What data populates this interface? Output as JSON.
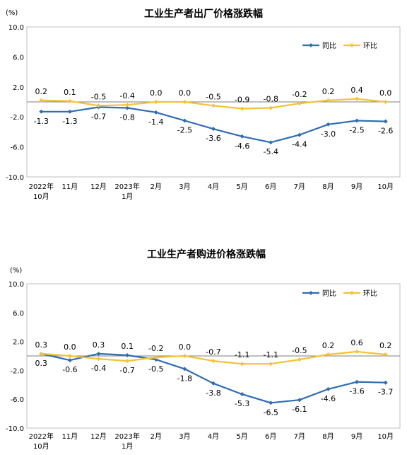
{
  "chart_data": [
    {
      "type": "line",
      "title": "工业生产者出厂价格涨跌幅",
      "unit": "(%)",
      "categories": [
        [
          "2022年",
          "10月"
        ],
        [
          "11月"
        ],
        [
          "12月"
        ],
        [
          "2023年",
          "1月"
        ],
        [
          "2月"
        ],
        [
          "3月"
        ],
        [
          "4月"
        ],
        [
          "5月"
        ],
        [
          "6月"
        ],
        [
          "7月"
        ],
        [
          "8月"
        ],
        [
          "9月"
        ],
        [
          "10月"
        ]
      ],
      "ylim": [
        -10.0,
        10.0
      ],
      "yticks": [
        "10.0",
        "6.0",
        "2.0",
        "-2.0",
        "-6.0",
        "-10.0"
      ],
      "ytick_values": [
        10,
        6,
        2,
        -2,
        -6,
        -10
      ],
      "legend_position": "top-right",
      "grid": false,
      "series": [
        {
          "name": "同比",
          "color": "#2E6DB4",
          "values": [
            -1.3,
            -1.3,
            -0.7,
            -0.8,
            -1.4,
            -2.5,
            -3.6,
            -4.6,
            -5.4,
            -4.4,
            -3.0,
            -2.5,
            -2.6
          ],
          "labels": [
            "-1.3",
            "-1.3",
            "-0.7",
            "-0.8",
            "-1.4",
            "-2.5",
            "-3.6",
            "-4.6",
            "-5.4",
            "-4.4",
            "-3.0",
            "-2.5",
            "-2.6"
          ]
        },
        {
          "name": "环比",
          "color": "#F5C232",
          "values": [
            0.2,
            0.1,
            -0.5,
            -0.4,
            0.0,
            0.0,
            -0.5,
            -0.9,
            -0.8,
            -0.2,
            0.2,
            0.4,
            0.0
          ],
          "labels": [
            "0.2",
            "0.1",
            "-0.5",
            "-0.4",
            "0.0",
            "0.0",
            "-0.5",
            "-0.9",
            "-0.8",
            "-0.2",
            "0.2",
            "0.4",
            "0.0"
          ]
        }
      ]
    },
    {
      "type": "line",
      "title": "工业生产者购进价格涨跌幅",
      "unit": "(%)",
      "categories": [
        [
          "2022年",
          "10月"
        ],
        [
          "11月"
        ],
        [
          "12月"
        ],
        [
          "2023年",
          "1月"
        ],
        [
          "2月"
        ],
        [
          "3月"
        ],
        [
          "4月"
        ],
        [
          "5月"
        ],
        [
          "6月"
        ],
        [
          "7月"
        ],
        [
          "8月"
        ],
        [
          "9月"
        ],
        [
          "10月"
        ]
      ],
      "ylim": [
        -10.0,
        10.0
      ],
      "yticks": [
        "10.0",
        "6.0",
        "2.0",
        "-2.0",
        "-6.0",
        "-10.0"
      ],
      "ytick_values": [
        10,
        6,
        2,
        -2,
        -6,
        -10
      ],
      "legend_position": "top-right",
      "grid": false,
      "series": [
        {
          "name": "同比",
          "color": "#2E6DB4",
          "values": [
            0.3,
            -0.6,
            0.3,
            0.1,
            -0.5,
            -1.8,
            -3.8,
            -5.3,
            -6.5,
            -6.1,
            -4.6,
            -3.6,
            -3.7
          ],
          "labels": [
            "0.3",
            "-0.6",
            "0.3",
            "0.1",
            "-0.5",
            "-1.8",
            "-3.8",
            "-5.3",
            "-6.5",
            "-6.1",
            "-4.6",
            "-3.6",
            "-3.7"
          ]
        },
        {
          "name": "环比",
          "color": "#F5C232",
          "values": [
            0.3,
            0.0,
            -0.4,
            -0.7,
            -0.2,
            0.0,
            -0.7,
            -1.1,
            -1.1,
            -0.5,
            0.2,
            0.6,
            0.2
          ],
          "labels": [
            "0.3",
            "0.0",
            "-0.4",
            "-0.7",
            "-0.2",
            "0.0",
            "-0.7",
            "-1.1",
            "-1.1",
            "-0.5",
            "0.2",
            "0.6",
            "0.2"
          ]
        }
      ]
    }
  ]
}
